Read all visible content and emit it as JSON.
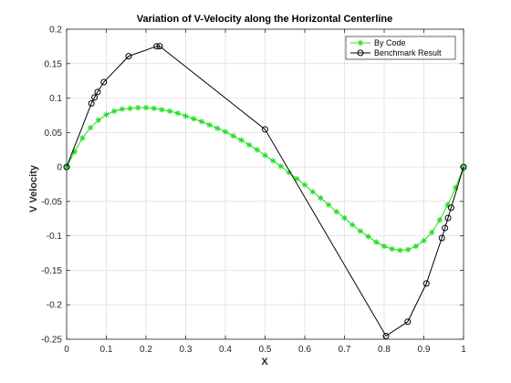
{
  "chart_data": {
    "type": "line",
    "title": "Variation of V-Velocity along the Horizontal Centerline",
    "xlabel": "X",
    "ylabel": "V Velocity",
    "xlim": [
      0,
      1
    ],
    "ylim": [
      -0.25,
      0.2
    ],
    "xticks": [
      0,
      0.1,
      0.2,
      0.3,
      0.4,
      0.5,
      0.6,
      0.7,
      0.8,
      0.9,
      1
    ],
    "yticks": [
      0.2,
      0.15,
      0.1,
      0.05,
      0,
      -0.05,
      -0.1,
      -0.15,
      -0.2,
      -0.25
    ],
    "xtick_labels": [
      "0",
      "0.1",
      "0.2",
      "0.3",
      "0.4",
      "0.5",
      "0.6",
      "0.7",
      "0.8",
      "0.9",
      "1"
    ],
    "ytick_labels": [
      "0.2",
      "0.15",
      "0.1",
      "0.05",
      "0",
      "-0.05",
      "-0.1",
      "-0.15",
      "-0.2",
      "-0.25"
    ],
    "grid": true,
    "legend_position": "top-right",
    "series": [
      {
        "name": "By Code",
        "color": "#22dd22",
        "marker": "asterisk",
        "x": [
          0,
          0.02,
          0.04,
          0.06,
          0.08,
          0.1,
          0.12,
          0.14,
          0.16,
          0.18,
          0.2,
          0.22,
          0.24,
          0.26,
          0.28,
          0.3,
          0.32,
          0.34,
          0.36,
          0.38,
          0.4,
          0.42,
          0.44,
          0.46,
          0.48,
          0.5,
          0.52,
          0.54,
          0.56,
          0.58,
          0.6,
          0.62,
          0.64,
          0.66,
          0.68,
          0.7,
          0.72,
          0.74,
          0.76,
          0.78,
          0.8,
          0.82,
          0.84,
          0.86,
          0.88,
          0.9,
          0.92,
          0.94,
          0.96,
          0.98,
          1
        ],
        "y": [
          0,
          0.022,
          0.042,
          0.057,
          0.068,
          0.076,
          0.081,
          0.084,
          0.085,
          0.086,
          0.086,
          0.085,
          0.083,
          0.081,
          0.078,
          0.074,
          0.07,
          0.066,
          0.061,
          0.056,
          0.051,
          0.045,
          0.039,
          0.032,
          0.025,
          0.017,
          0.009,
          0.001,
          -0.008,
          -0.017,
          -0.026,
          -0.036,
          -0.045,
          -0.055,
          -0.065,
          -0.074,
          -0.084,
          -0.093,
          -0.101,
          -0.109,
          -0.115,
          -0.119,
          -0.121,
          -0.12,
          -0.115,
          -0.107,
          -0.095,
          -0.077,
          -0.055,
          -0.03,
          0
        ]
      },
      {
        "name": "Benchmark Result",
        "color": "#000000",
        "marker": "circle",
        "x": [
          0,
          0.0625,
          0.0703,
          0.0781,
          0.0938,
          0.1563,
          0.2266,
          0.2344,
          0.5,
          0.8047,
          0.8594,
          0.9063,
          0.9453,
          0.9531,
          0.9609,
          0.9688,
          1
        ],
        "y": [
          0,
          0.0923,
          0.1009,
          0.1089,
          0.1232,
          0.1608,
          0.1751,
          0.1753,
          0.0545,
          -0.2453,
          -0.2245,
          -0.1691,
          -0.1031,
          -0.0886,
          -0.0739,
          -0.0591,
          0
        ]
      }
    ]
  }
}
